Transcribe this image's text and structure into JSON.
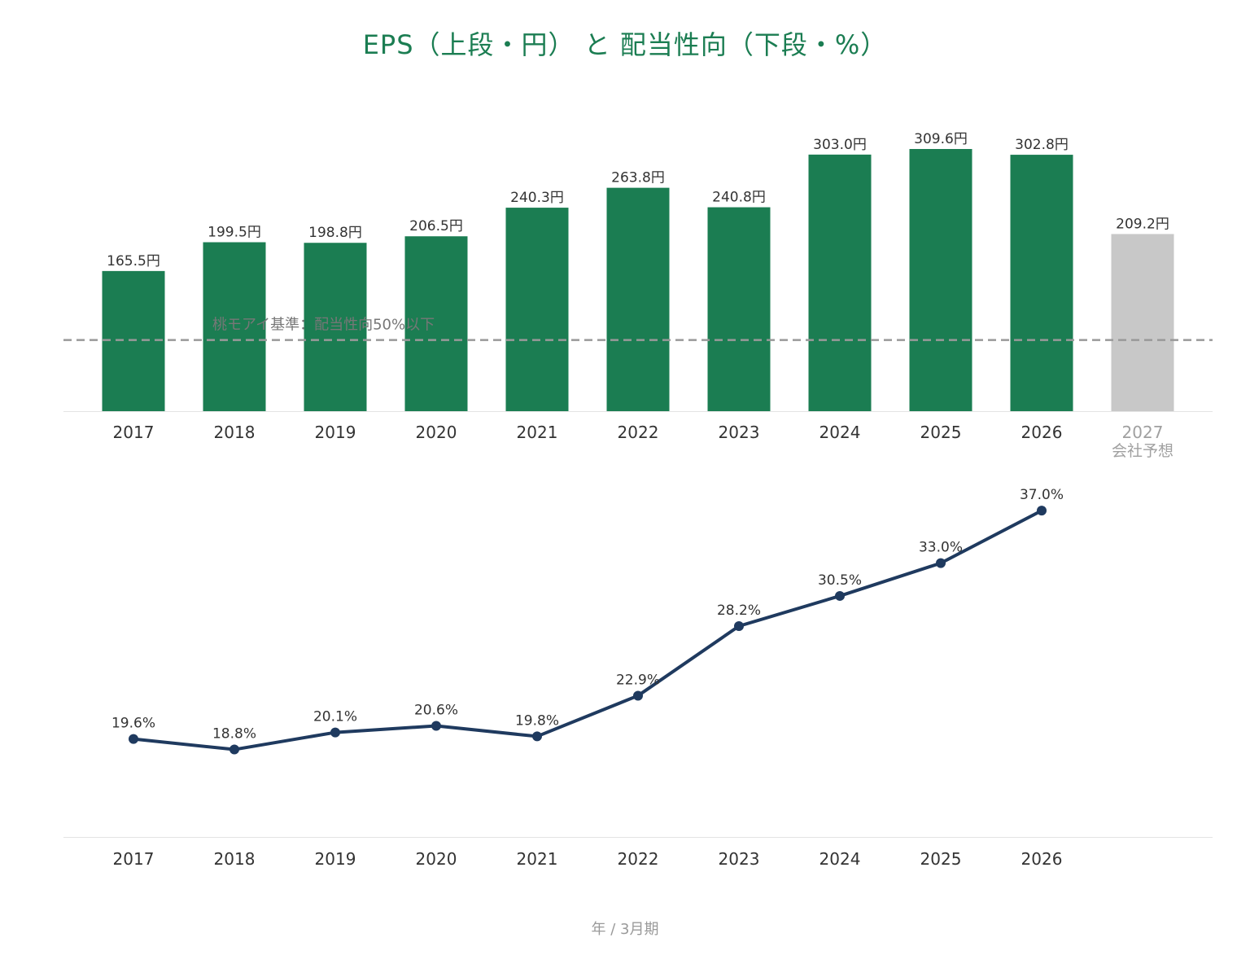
{
  "title": "EPS（上段・円） と 配当性向（下段・%）",
  "footer_label": "年 / 3月期",
  "colors": {
    "bar": "#1b7d52",
    "bar_forecast": "#c8c8c8",
    "line": "#1f3a5f",
    "title": "#1b7d52",
    "threshold": "#999999"
  },
  "chart_data": [
    {
      "type": "bar",
      "title": "EPS（上段・円）",
      "categories": [
        "2017",
        "2018",
        "2019",
        "2020",
        "2021",
        "2022",
        "2023",
        "2024",
        "2025",
        "2026",
        "2027"
      ],
      "values": [
        165.5,
        199.5,
        198.8,
        206.5,
        240.3,
        263.8,
        240.8,
        303.0,
        309.6,
        302.8,
        209.2
      ],
      "value_labels": [
        "165.5円",
        "199.5円",
        "198.8円",
        "206.5円",
        "240.3円",
        "263.8円",
        "240.8円",
        "303.0円",
        "309.6円",
        "302.8円",
        "209.2円"
      ],
      "forecast_index": 10,
      "forecast_note": "会社予想",
      "ylim": [
        0,
        330
      ],
      "grid": false
    },
    {
      "type": "line",
      "title": "配当性向（下段・%）",
      "categories": [
        "2017",
        "2018",
        "2019",
        "2020",
        "2021",
        "2022",
        "2023",
        "2024",
        "2025",
        "2026"
      ],
      "values": [
        19.6,
        18.8,
        20.1,
        20.6,
        19.8,
        22.9,
        28.2,
        30.5,
        33.0,
        37.0
      ],
      "value_labels": [
        "19.6%",
        "18.8%",
        "20.1%",
        "20.6%",
        "19.8%",
        "22.9%",
        "28.2%",
        "30.5%",
        "33.0%",
        "37.0%"
      ],
      "threshold": {
        "value": 50,
        "label": "桃モアイ基準：配当性向50%以下"
      },
      "ylim": [
        0,
        51
      ],
      "grid": false
    }
  ]
}
